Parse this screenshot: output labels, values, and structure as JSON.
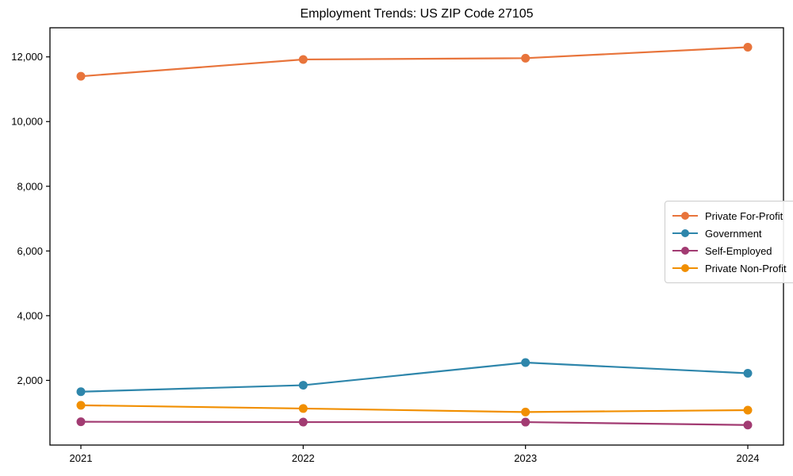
{
  "title": "Employment Trends: US ZIP Code 27105",
  "chart_data": {
    "type": "line",
    "title": "Employment Trends: US ZIP Code 27105",
    "x": [
      2021,
      2022,
      2023,
      2024
    ],
    "xtick_labels": [
      "2021",
      "2022",
      "2023",
      "2024"
    ],
    "yticks": [
      2000,
      4000,
      6000,
      8000,
      10000,
      12000
    ],
    "ytick_labels": [
      "2,000",
      "4,000",
      "6,000",
      "8,000",
      "10,000",
      "12,000"
    ],
    "ylim": [
      0,
      12900
    ],
    "grid": false,
    "legend_position": "center right",
    "series": [
      {
        "name": "Private For-Profit",
        "color": "#E8743B",
        "values": [
          11400,
          11920,
          11960,
          12300
        ]
      },
      {
        "name": "Government",
        "color": "#2E86AB",
        "values": [
          1650,
          1850,
          2550,
          2220
        ]
      },
      {
        "name": "Self-Employed",
        "color": "#A23B72",
        "values": [
          720,
          710,
          710,
          620
        ]
      },
      {
        "name": "Private Non-Profit",
        "color": "#F18F01",
        "values": [
          1230,
          1130,
          1020,
          1080
        ]
      }
    ]
  },
  "colors": {
    "axis": "#000000",
    "background": "#ffffff",
    "legend_border": "#cccccc"
  }
}
